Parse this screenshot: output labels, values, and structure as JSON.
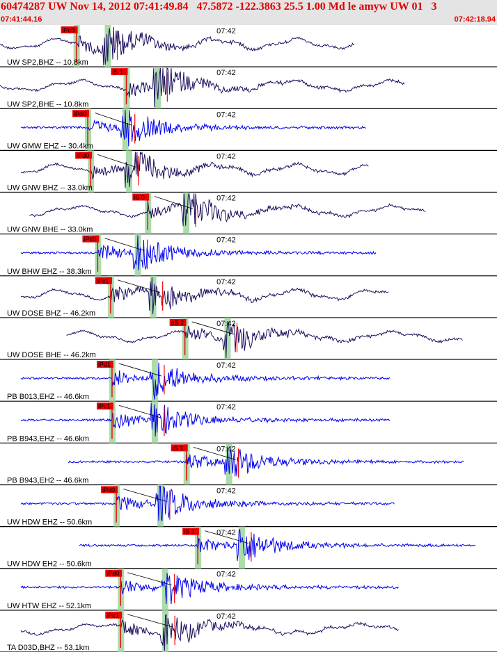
{
  "header": {
    "title": "60474287 UW Nov 14, 2012 07:41:49.84   47.5872 -122.3863 25.5 1.00 Md le amyw UW 01   3",
    "start_time": "07:41:44.16",
    "end_time": "07:42:18.94"
  },
  "colors": {
    "header_bg": "#e4e4e4",
    "header_text": "#e00000",
    "trace_short_period": "#1c0f5e",
    "trace_broadband": "#0000ee",
    "pick": "#ee0000",
    "window": "#9ed69e",
    "moveout": "#000000"
  },
  "chart_data": {
    "type": "line",
    "title": "60474287 UW Nov 14, 2012 07:41:49.84   47.5872 -122.3863 25.5 1.00 Md le amyw UW 01   3",
    "x_range": [
      "07:41:44.16",
      "07:42:18.94"
    ],
    "x_tick_label": "07:42",
    "grid": false,
    "legend": "none",
    "series": [
      {
        "name": "UW SP2,BHZ -- 10.8km",
        "pick_label": "iPc0",
        "pick_time": "07:41:49.5",
        "s_label": "",
        "color": "#1c0f5e"
      },
      {
        "name": "UW SP2,BHE -- 10.8km",
        "pick_label": "iS 1",
        "pick_time": "07:41:53.0",
        "s_label": "",
        "color": "#1c0f5e"
      },
      {
        "name": "UW GMW EHZ -- 30.4km",
        "pick_label": "iPd0",
        "pick_time": "07:41:50.3",
        "s_label": "",
        "color": "#0000ee"
      },
      {
        "name": "UW GNW BHZ -- 33.0km",
        "pick_label": "iPd0",
        "pick_time": "07:41:50.5",
        "s_label": "",
        "color": "#1c0f5e"
      },
      {
        "name": "UW GNW BHE -- 33.0km",
        "pick_label": "iS 0",
        "pick_time": "07:41:54.5",
        "s_label": "",
        "color": "#1c0f5e"
      },
      {
        "name": "UW BHW EHZ -- 38.3km",
        "pick_label": "iPc0",
        "pick_time": "07:41:51.0",
        "s_label": "",
        "color": "#0000ee"
      },
      {
        "name": "UW DOSE BHZ -- 46.2km",
        "pick_label": "iPc1",
        "pick_time": "07:41:51.9",
        "s_label": "",
        "color": "#1c0f5e"
      },
      {
        "name": "UW DOSE BHE -- 46.2km",
        "pick_label": "eS 2",
        "pick_time": "07:41:57.1",
        "s_label": "",
        "color": "#1c0f5e"
      },
      {
        "name": "PB B013,EHZ -- 46.6km",
        "pick_label": "iPd1",
        "pick_time": "07:41:52.0",
        "s_label": "",
        "color": "#0000ee"
      },
      {
        "name": "PB B943,EHZ -- 46.6km",
        "pick_label": "iPc1",
        "pick_time": "07:41:52.0",
        "s_label": "",
        "color": "#0000ee"
      },
      {
        "name": "PB B943,EH2 -- 46.6km",
        "pick_label": "iS 1",
        "pick_time": "07:41:57.2",
        "s_label": "",
        "color": "#0000ee"
      },
      {
        "name": "UW HDW EHZ -- 50.6km",
        "pick_label": "iPd0",
        "pick_time": "07:41:52.3",
        "s_label": "",
        "color": "#0000ee"
      },
      {
        "name": "UW HDW EH2 -- 50.6km",
        "pick_label": "iS 1",
        "pick_time": "07:41:58.0",
        "s_label": "",
        "color": "#0000ee"
      },
      {
        "name": "UW HTW EHZ -- 52.1km",
        "pick_label": "iPd0",
        "pick_time": "07:41:52.6",
        "s_label": "",
        "color": "#0000ee"
      },
      {
        "name": "TA D03D,BHZ -- 53.1km",
        "pick_label": "iPc1",
        "pick_time": "07:41:52.6",
        "s_label": "",
        "color": "#1c0f5e"
      }
    ]
  }
}
